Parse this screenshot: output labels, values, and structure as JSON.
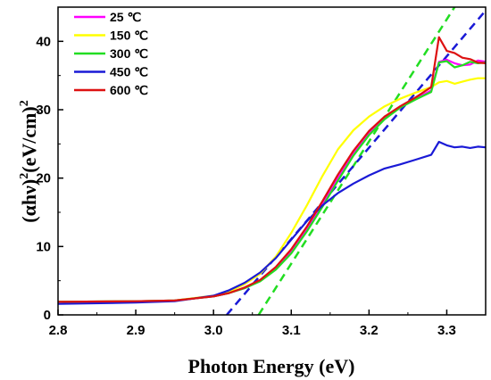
{
  "chart_data": {
    "type": "line",
    "xlabel": "Photon Energy (eV)",
    "ylabel": {
      "base": "(αhν)",
      "sup1": "2",
      "mid": "(eV/cm)",
      "sup2": "2"
    },
    "xlim": [
      2.8,
      3.35
    ],
    "ylim": [
      0,
      45
    ],
    "xticks": [
      "2.8",
      "2.9",
      "3.0",
      "3.1",
      "3.2",
      "3.3"
    ],
    "yticks": [
      "0",
      "10",
      "20",
      "30",
      "40"
    ],
    "legend_position": "top-left",
    "series": [
      {
        "name": "25 ℃",
        "color": "#ff00ff",
        "points": [
          [
            2.8,
            1.9
          ],
          [
            2.9,
            2.0
          ],
          [
            2.95,
            2.1
          ],
          [
            3.0,
            2.7
          ],
          [
            3.02,
            3.2
          ],
          [
            3.04,
            3.9
          ],
          [
            3.06,
            5.0
          ],
          [
            3.08,
            6.8
          ],
          [
            3.1,
            9.3
          ],
          [
            3.12,
            12.5
          ],
          [
            3.14,
            16.2
          ],
          [
            3.16,
            20.0
          ],
          [
            3.18,
            23.6
          ],
          [
            3.2,
            26.6
          ],
          [
            3.22,
            28.8
          ],
          [
            3.24,
            30.4
          ],
          [
            3.26,
            31.6
          ],
          [
            3.28,
            32.8
          ],
          [
            3.29,
            37.0
          ],
          [
            3.3,
            37.3
          ],
          [
            3.31,
            36.8
          ],
          [
            3.32,
            36.5
          ],
          [
            3.33,
            36.6
          ],
          [
            3.34,
            37.2
          ],
          [
            3.35,
            37.0
          ]
        ]
      },
      {
        "name": "150 ℃",
        "color": "#ffff00",
        "points": [
          [
            2.8,
            1.9
          ],
          [
            2.9,
            2.0
          ],
          [
            2.95,
            2.1
          ],
          [
            3.0,
            2.8
          ],
          [
            3.02,
            3.4
          ],
          [
            3.04,
            4.5
          ],
          [
            3.06,
            6.0
          ],
          [
            3.08,
            8.5
          ],
          [
            3.1,
            12.0
          ],
          [
            3.12,
            16.0
          ],
          [
            3.14,
            20.3
          ],
          [
            3.16,
            24.2
          ],
          [
            3.18,
            27.0
          ],
          [
            3.2,
            29.0
          ],
          [
            3.22,
            30.5
          ],
          [
            3.24,
            31.6
          ],
          [
            3.26,
            32.5
          ],
          [
            3.28,
            33.3
          ],
          [
            3.29,
            34.0
          ],
          [
            3.3,
            34.2
          ],
          [
            3.31,
            33.8
          ],
          [
            3.32,
            34.1
          ],
          [
            3.33,
            34.4
          ],
          [
            3.34,
            34.6
          ],
          [
            3.35,
            34.6
          ]
        ]
      },
      {
        "name": "300 ℃",
        "color": "#22dd22",
        "points": [
          [
            2.8,
            1.9
          ],
          [
            2.9,
            2.0
          ],
          [
            2.95,
            2.1
          ],
          [
            3.0,
            2.7
          ],
          [
            3.02,
            3.2
          ],
          [
            3.04,
            3.9
          ],
          [
            3.06,
            4.9
          ],
          [
            3.08,
            6.6
          ],
          [
            3.1,
            9.0
          ],
          [
            3.12,
            12.2
          ],
          [
            3.14,
            15.8
          ],
          [
            3.16,
            19.6
          ],
          [
            3.18,
            23.3
          ],
          [
            3.2,
            26.3
          ],
          [
            3.22,
            28.6
          ],
          [
            3.24,
            30.3
          ],
          [
            3.26,
            31.5
          ],
          [
            3.28,
            32.6
          ],
          [
            3.29,
            36.9
          ],
          [
            3.3,
            37.1
          ],
          [
            3.31,
            36.2
          ],
          [
            3.32,
            36.5
          ],
          [
            3.33,
            37.0
          ],
          [
            3.34,
            36.8
          ],
          [
            3.35,
            36.9
          ]
        ]
      },
      {
        "name": "450 ℃",
        "color": "#1a1ad6",
        "points": [
          [
            2.8,
            1.6
          ],
          [
            2.9,
            1.8
          ],
          [
            2.95,
            2.0
          ],
          [
            3.0,
            2.8
          ],
          [
            3.02,
            3.6
          ],
          [
            3.04,
            4.7
          ],
          [
            3.06,
            6.2
          ],
          [
            3.08,
            8.3
          ],
          [
            3.1,
            11.0
          ],
          [
            3.12,
            13.7
          ],
          [
            3.14,
            16.0
          ],
          [
            3.16,
            17.8
          ],
          [
            3.18,
            19.2
          ],
          [
            3.2,
            20.4
          ],
          [
            3.22,
            21.4
          ],
          [
            3.24,
            22.0
          ],
          [
            3.26,
            22.7
          ],
          [
            3.28,
            23.4
          ],
          [
            3.29,
            25.3
          ],
          [
            3.3,
            24.8
          ],
          [
            3.31,
            24.5
          ],
          [
            3.32,
            24.6
          ],
          [
            3.33,
            24.4
          ],
          [
            3.34,
            24.6
          ],
          [
            3.35,
            24.5
          ]
        ]
      },
      {
        "name": "600 ℃",
        "color": "#dd1111",
        "points": [
          [
            2.8,
            1.9
          ],
          [
            2.9,
            2.0
          ],
          [
            2.95,
            2.1
          ],
          [
            3.0,
            2.7
          ],
          [
            3.02,
            3.2
          ],
          [
            3.04,
            4.0
          ],
          [
            3.06,
            5.1
          ],
          [
            3.08,
            7.0
          ],
          [
            3.1,
            9.6
          ],
          [
            3.12,
            12.9
          ],
          [
            3.14,
            16.6
          ],
          [
            3.16,
            20.5
          ],
          [
            3.18,
            24.0
          ],
          [
            3.2,
            26.9
          ],
          [
            3.22,
            29.0
          ],
          [
            3.24,
            30.5
          ],
          [
            3.26,
            31.8
          ],
          [
            3.28,
            33.3
          ],
          [
            3.29,
            40.6
          ],
          [
            3.3,
            38.6
          ],
          [
            3.31,
            38.3
          ],
          [
            3.32,
            37.6
          ],
          [
            3.33,
            37.4
          ],
          [
            3.34,
            36.9
          ],
          [
            3.35,
            36.8
          ]
        ]
      }
    ],
    "fit_lines": [
      {
        "color": "#22dd22",
        "points": [
          [
            3.058,
            0
          ],
          [
            3.31,
            45
          ]
        ]
      },
      {
        "color": "#1a1ad6",
        "points": [
          [
            3.017,
            0
          ],
          [
            3.35,
            44.5
          ]
        ]
      }
    ]
  }
}
